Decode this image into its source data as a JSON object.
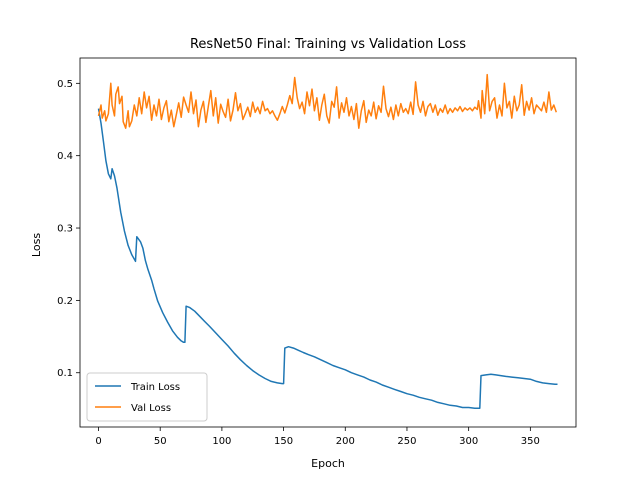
{
  "chart_data": {
    "type": "line",
    "title": "ResNet50 Final: Training vs Validation Loss",
    "xlabel": "Epoch",
    "ylabel": "Loss",
    "xlim": [
      -15,
      387
    ],
    "ylim": [
      0.025,
      0.535
    ],
    "xticks": [
      0,
      50,
      100,
      150,
      200,
      250,
      300,
      350
    ],
    "yticks": [
      0.1,
      0.2,
      0.3,
      0.4,
      0.5
    ],
    "ytick_labels": [
      "0.1",
      "0.2",
      "0.3",
      "0.4",
      "0.5"
    ],
    "grid": false,
    "legend_position": "lower-left",
    "series": [
      {
        "name": "Train Loss",
        "color": "#1f77b4",
        "points": [
          [
            0,
            0.465
          ],
          [
            2,
            0.445
          ],
          [
            4,
            0.42
          ],
          [
            6,
            0.393
          ],
          [
            8,
            0.375
          ],
          [
            10,
            0.368
          ],
          [
            11,
            0.382
          ],
          [
            13,
            0.372
          ],
          [
            15,
            0.355
          ],
          [
            18,
            0.322
          ],
          [
            21,
            0.296
          ],
          [
            24,
            0.276
          ],
          [
            27,
            0.263
          ],
          [
            29,
            0.257
          ],
          [
            30,
            0.254
          ],
          [
            31,
            0.288
          ],
          [
            34,
            0.281
          ],
          [
            36,
            0.272
          ],
          [
            38,
            0.255
          ],
          [
            40,
            0.243
          ],
          [
            43,
            0.228
          ],
          [
            45,
            0.216
          ],
          [
            48,
            0.199
          ],
          [
            52,
            0.183
          ],
          [
            56,
            0.17
          ],
          [
            60,
            0.158
          ],
          [
            64,
            0.149
          ],
          [
            67,
            0.144
          ],
          [
            69,
            0.142
          ],
          [
            70,
            0.142
          ],
          [
            71,
            0.192
          ],
          [
            74,
            0.19
          ],
          [
            78,
            0.185
          ],
          [
            82,
            0.178
          ],
          [
            86,
            0.171
          ],
          [
            90,
            0.164
          ],
          [
            95,
            0.155
          ],
          [
            100,
            0.146
          ],
          [
            105,
            0.137
          ],
          [
            110,
            0.127
          ],
          [
            115,
            0.118
          ],
          [
            120,
            0.11
          ],
          [
            125,
            0.103
          ],
          [
            130,
            0.097
          ],
          [
            135,
            0.092
          ],
          [
            140,
            0.088
          ],
          [
            145,
            0.086
          ],
          [
            149,
            0.085
          ],
          [
            150,
            0.085
          ],
          [
            151,
            0.134
          ],
          [
            154,
            0.136
          ],
          [
            158,
            0.134
          ],
          [
            162,
            0.131
          ],
          [
            166,
            0.128
          ],
          [
            170,
            0.125
          ],
          [
            175,
            0.122
          ],
          [
            180,
            0.118
          ],
          [
            185,
            0.114
          ],
          [
            190,
            0.11
          ],
          [
            195,
            0.107
          ],
          [
            200,
            0.104
          ],
          [
            205,
            0.1
          ],
          [
            210,
            0.097
          ],
          [
            215,
            0.094
          ],
          [
            220,
            0.09
          ],
          [
            225,
            0.087
          ],
          [
            230,
            0.083
          ],
          [
            235,
            0.08
          ],
          [
            240,
            0.077
          ],
          [
            245,
            0.074
          ],
          [
            250,
            0.071
          ],
          [
            255,
            0.069
          ],
          [
            260,
            0.066
          ],
          [
            265,
            0.064
          ],
          [
            270,
            0.062
          ],
          [
            275,
            0.059
          ],
          [
            280,
            0.057
          ],
          [
            285,
            0.055
          ],
          [
            290,
            0.054
          ],
          [
            295,
            0.052
          ],
          [
            300,
            0.052
          ],
          [
            305,
            0.051
          ],
          [
            309,
            0.051
          ],
          [
            310,
            0.096
          ],
          [
            314,
            0.097
          ],
          [
            318,
            0.098
          ],
          [
            322,
            0.097
          ],
          [
            326,
            0.096
          ],
          [
            330,
            0.095
          ],
          [
            335,
            0.094
          ],
          [
            340,
            0.093
          ],
          [
            345,
            0.092
          ],
          [
            350,
            0.091
          ],
          [
            355,
            0.088
          ],
          [
            360,
            0.086
          ],
          [
            365,
            0.085
          ],
          [
            370,
            0.084
          ],
          [
            372,
            0.084
          ]
        ]
      },
      {
        "name": "Val Loss",
        "color": "#ff7f0e",
        "points": [
          [
            0,
            0.455
          ],
          [
            2,
            0.47
          ],
          [
            3,
            0.452
          ],
          [
            5,
            0.462
          ],
          [
            6,
            0.448
          ],
          [
            8,
            0.458
          ],
          [
            10,
            0.5
          ],
          [
            11,
            0.47
          ],
          [
            13,
            0.455
          ],
          [
            14,
            0.485
          ],
          [
            16,
            0.495
          ],
          [
            17,
            0.472
          ],
          [
            19,
            0.482
          ],
          [
            20,
            0.447
          ],
          [
            22,
            0.438
          ],
          [
            24,
            0.462
          ],
          [
            25,
            0.44
          ],
          [
            27,
            0.448
          ],
          [
            29,
            0.47
          ],
          [
            31,
            0.455
          ],
          [
            33,
            0.48
          ],
          [
            35,
            0.458
          ],
          [
            37,
            0.488
          ],
          [
            39,
            0.466
          ],
          [
            41,
            0.482
          ],
          [
            43,
            0.449
          ],
          [
            45,
            0.47
          ],
          [
            47,
            0.455
          ],
          [
            49,
            0.478
          ],
          [
            51,
            0.45
          ],
          [
            53,
            0.466
          ],
          [
            55,
            0.476
          ],
          [
            57,
            0.447
          ],
          [
            59,
            0.463
          ],
          [
            61,
            0.44
          ],
          [
            63,
            0.456
          ],
          [
            65,
            0.473
          ],
          [
            67,
            0.453
          ],
          [
            69,
            0.481
          ],
          [
            71,
            0.47
          ],
          [
            73,
            0.46
          ],
          [
            75,
            0.488
          ],
          [
            77,
            0.458
          ],
          [
            79,
            0.477
          ],
          [
            81,
            0.44
          ],
          [
            83,
            0.463
          ],
          [
            85,
            0.475
          ],
          [
            87,
            0.446
          ],
          [
            89,
            0.468
          ],
          [
            91,
            0.49
          ],
          [
            93,
            0.455
          ],
          [
            95,
            0.48
          ],
          [
            97,
            0.445
          ],
          [
            99,
            0.471
          ],
          [
            101,
            0.461
          ],
          [
            103,
            0.453
          ],
          [
            105,
            0.478
          ],
          [
            107,
            0.448
          ],
          [
            109,
            0.463
          ],
          [
            111,
            0.487
          ],
          [
            113,
            0.462
          ],
          [
            115,
            0.472
          ],
          [
            117,
            0.45
          ],
          [
            119,
            0.458
          ],
          [
            121,
            0.467
          ],
          [
            123,
            0.454
          ],
          [
            125,
            0.474
          ],
          [
            127,
            0.46
          ],
          [
            129,
            0.467
          ],
          [
            131,
            0.458
          ],
          [
            133,
            0.475
          ],
          [
            135,
            0.462
          ],
          [
            137,
            0.465
          ],
          [
            139,
            0.458
          ],
          [
            141,
            0.462
          ],
          [
            143,
            0.455
          ],
          [
            145,
            0.449
          ],
          [
            147,
            0.458
          ],
          [
            149,
            0.468
          ],
          [
            151,
            0.459
          ],
          [
            153,
            0.47
          ],
          [
            155,
            0.483
          ],
          [
            157,
            0.472
          ],
          [
            159,
            0.508
          ],
          [
            161,
            0.48
          ],
          [
            163,
            0.465
          ],
          [
            165,
            0.474
          ],
          [
            167,
            0.458
          ],
          [
            169,
            0.488
          ],
          [
            171,
            0.469
          ],
          [
            173,
            0.492
          ],
          [
            175,
            0.462
          ],
          [
            177,
            0.48
          ],
          [
            179,
            0.449
          ],
          [
            181,
            0.47
          ],
          [
            183,
            0.485
          ],
          [
            185,
            0.455
          ],
          [
            187,
            0.445
          ],
          [
            189,
            0.475
          ],
          [
            191,
            0.467
          ],
          [
            193,
            0.495
          ],
          [
            195,
            0.452
          ],
          [
            197,
            0.473
          ],
          [
            199,
            0.46
          ],
          [
            201,
            0.48
          ],
          [
            203,
            0.455
          ],
          [
            205,
            0.468
          ],
          [
            207,
            0.45
          ],
          [
            209,
            0.472
          ],
          [
            211,
            0.438
          ],
          [
            213,
            0.462
          ],
          [
            215,
            0.476
          ],
          [
            217,
            0.446
          ],
          [
            219,
            0.463
          ],
          [
            221,
            0.455
          ],
          [
            223,
            0.474
          ],
          [
            225,
            0.451
          ],
          [
            227,
            0.469
          ],
          [
            229,
            0.46
          ],
          [
            231,
            0.496
          ],
          [
            233,
            0.465
          ],
          [
            235,
            0.454
          ],
          [
            237,
            0.467
          ],
          [
            239,
            0.45
          ],
          [
            241,
            0.47
          ],
          [
            243,
            0.455
          ],
          [
            245,
            0.472
          ],
          [
            247,
            0.46
          ],
          [
            249,
            0.465
          ],
          [
            251,
            0.458
          ],
          [
            253,
            0.474
          ],
          [
            255,
            0.457
          ],
          [
            257,
            0.502
          ],
          [
            259,
            0.47
          ],
          [
            261,
            0.46
          ],
          [
            263,
            0.475
          ],
          [
            265,
            0.455
          ],
          [
            267,
            0.468
          ],
          [
            269,
            0.472
          ],
          [
            271,
            0.46
          ],
          [
            273,
            0.47
          ],
          [
            275,
            0.456
          ],
          [
            277,
            0.465
          ],
          [
            279,
            0.46
          ],
          [
            281,
            0.47
          ],
          [
            283,
            0.458
          ],
          [
            285,
            0.465
          ],
          [
            287,
            0.46
          ],
          [
            289,
            0.466
          ],
          [
            291,
            0.462
          ],
          [
            293,
            0.468
          ],
          [
            295,
            0.461
          ],
          [
            297,
            0.466
          ],
          [
            299,
            0.463
          ],
          [
            301,
            0.466
          ],
          [
            303,
            0.462
          ],
          [
            305,
            0.467
          ],
          [
            307,
            0.464
          ],
          [
            308,
            0.476
          ],
          [
            310,
            0.452
          ],
          [
            311,
            0.49
          ],
          [
            313,
            0.458
          ],
          [
            315,
            0.512
          ],
          [
            317,
            0.462
          ],
          [
            319,
            0.475
          ],
          [
            321,
            0.48
          ],
          [
            323,
            0.452
          ],
          [
            325,
            0.47
          ],
          [
            327,
            0.455
          ],
          [
            329,
            0.5
          ],
          [
            331,
            0.466
          ],
          [
            333,
            0.475
          ],
          [
            335,
            0.452
          ],
          [
            337,
            0.482
          ],
          [
            339,
            0.462
          ],
          [
            341,
            0.47
          ],
          [
            343,
            0.498
          ],
          [
            345,
            0.456
          ],
          [
            347,
            0.475
          ],
          [
            349,
            0.463
          ],
          [
            351,
            0.48
          ],
          [
            353,
            0.458
          ],
          [
            355,
            0.47
          ],
          [
            357,
            0.466
          ],
          [
            359,
            0.462
          ],
          [
            361,
            0.474
          ],
          [
            363,
            0.46
          ],
          [
            365,
            0.488
          ],
          [
            367,
            0.463
          ],
          [
            369,
            0.47
          ],
          [
            371,
            0.46
          ]
        ]
      }
    ]
  }
}
